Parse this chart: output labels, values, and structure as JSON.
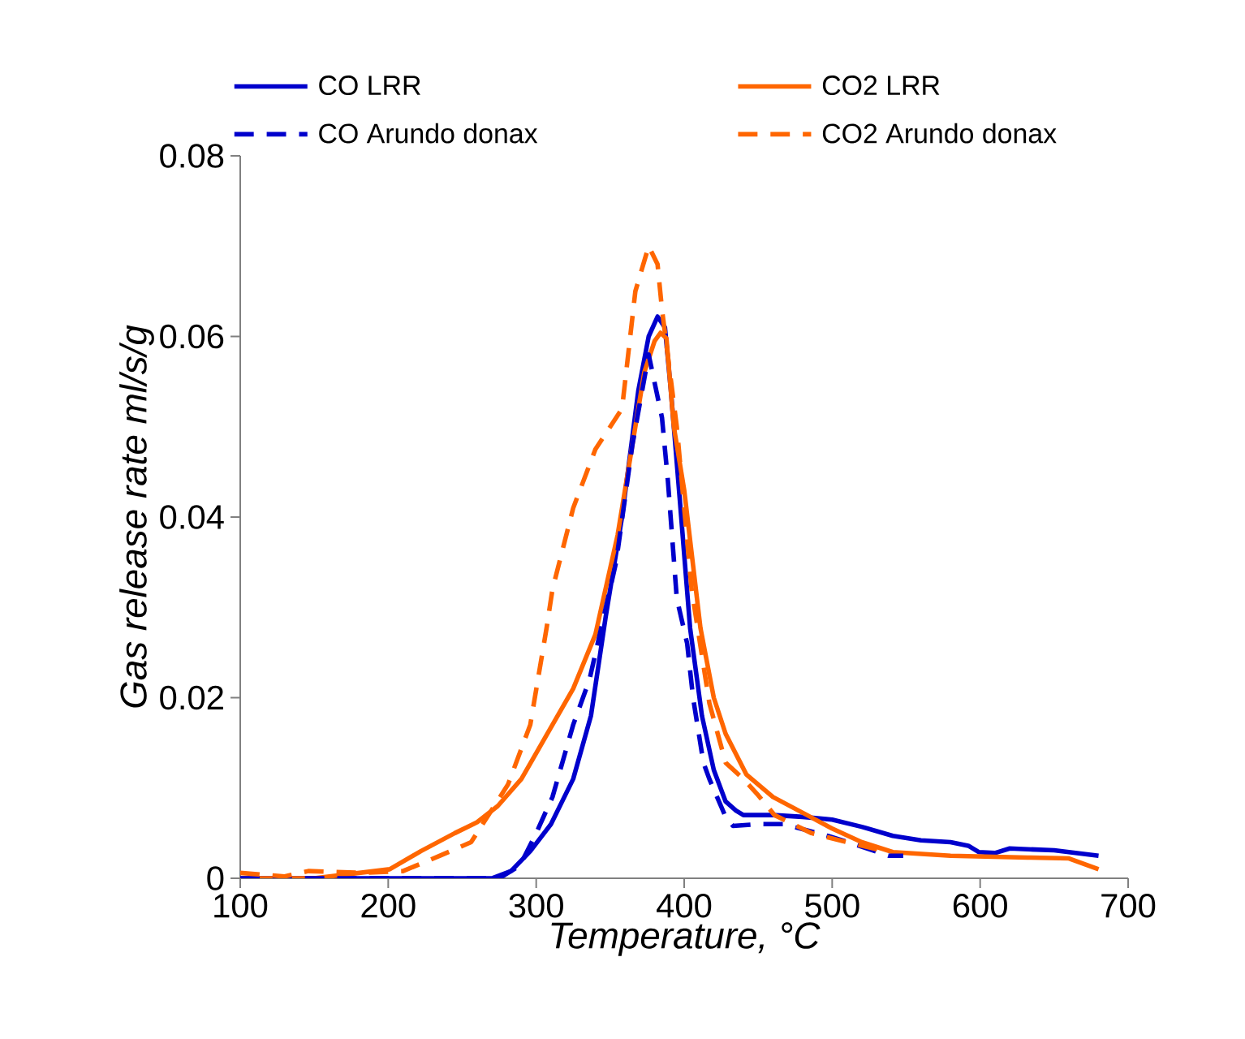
{
  "chart_data": {
    "type": "line",
    "xlabel": "*Temperature, °C*",
    "ylabel": "*Gas release rate ml/s/g*",
    "xlim": [
      100,
      700
    ],
    "ylim": [
      0,
      0.08
    ],
    "xticks": [
      100,
      200,
      300,
      400,
      500,
      600,
      700
    ],
    "yticks": [
      0,
      {
        "value": 0.02,
        "label": "0.02"
      },
      {
        "value": 0.04,
        "label": "0.04"
      },
      {
        "value": 0.06,
        "label": "0.06"
      },
      {
        "value": 0.08,
        "label": "0.08"
      }
    ],
    "grid": false,
    "legend": "top",
    "marker": "none",
    "series": [
      {
        "name": "CO LRR",
        "color": "#0000cc",
        "line_style": "solid",
        "x": [
          100,
          200,
          270,
          283,
          296,
          310,
          325,
          337,
          347,
          358,
          369,
          376,
          382,
          387,
          391,
          397,
          404,
          412,
          420,
          428,
          435,
          440,
          460,
          480,
          500,
          520,
          541,
          560,
          580,
          592,
          599,
          610,
          620,
          650,
          680
        ],
        "values": [
          0,
          0,
          0,
          0.0008,
          0.003,
          0.006,
          0.011,
          0.018,
          0.029,
          0.04,
          0.054,
          0.06,
          0.0622,
          0.061,
          0.054,
          0.042,
          0.0277,
          0.018,
          0.012,
          0.0085,
          0.0075,
          0.007,
          0.007,
          0.0068,
          0.0065,
          0.0057,
          0.0047,
          0.0042,
          0.004,
          0.0036,
          0.0029,
          0.0028,
          0.0033,
          0.0031,
          0.0025
        ]
      },
      {
        "name": "CO2 LRR",
        "color": "#ff6600",
        "line_style": "solid",
        "x": [
          100,
          150,
          201,
          222,
          245,
          260,
          274,
          290,
          311,
          325,
          340,
          355,
          365,
          373,
          380,
          384,
          388,
          393,
          400,
          411,
          420,
          428,
          442,
          460,
          483,
          500,
          520,
          541,
          580,
          632,
          660,
          680
        ],
        "values": [
          0,
          0,
          0.001,
          0.003,
          0.005,
          0.0062,
          0.008,
          0.011,
          0.017,
          0.021,
          0.027,
          0.038,
          0.048,
          0.056,
          0.0595,
          0.0604,
          0.0598,
          0.05,
          0.043,
          0.0277,
          0.02,
          0.016,
          0.0115,
          0.009,
          0.007,
          0.0055,
          0.004,
          0.0029,
          0.0025,
          0.0023,
          0.0022,
          0.001
        ]
      },
      {
        "name": "CO Arundo donax",
        "color": "#0000cc",
        "line_style": "dashed",
        "x": [
          100,
          200,
          275,
          289,
          300,
          311,
          325,
          336,
          354,
          365,
          376,
          385,
          389,
          395,
          402,
          406,
          413,
          417,
          428,
          433,
          450,
          467,
          497,
          520,
          538,
          548
        ],
        "values": [
          0,
          0,
          0,
          0.0014,
          0.005,
          0.009,
          0.017,
          0.022,
          0.035,
          0.048,
          0.058,
          0.051,
          0.044,
          0.031,
          0.026,
          0.02,
          0.0128,
          0.011,
          0.0068,
          0.0058,
          0.006,
          0.006,
          0.0047,
          0.0035,
          0.0025,
          0.0025
        ]
      },
      {
        "name": "CO2 Arundo donax",
        "color": "#ff6600",
        "line_style": "dashed",
        "x": [
          100,
          130,
          146,
          182,
          210,
          235,
          256,
          281,
          296,
          307,
          311,
          325,
          340,
          358,
          367,
          376,
          382,
          385,
          395,
          405,
          417,
          428,
          440,
          450,
          461,
          486,
          510,
          538
        ],
        "values": [
          0.0006,
          0.0002,
          0.0008,
          0.0006,
          0.0008,
          0.0025,
          0.004,
          0.0104,
          0.017,
          0.0277,
          0.032,
          0.041,
          0.0475,
          0.052,
          0.065,
          0.07,
          0.068,
          0.063,
          0.05,
          0.032,
          0.0194,
          0.0128,
          0.011,
          0.0092,
          0.007,
          0.005,
          0.004,
          0.0029
        ]
      }
    ]
  }
}
